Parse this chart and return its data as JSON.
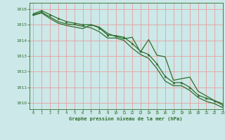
{
  "title": "Graphe pression niveau de la mer (hPa)",
  "background_color": "#cce8e8",
  "grid_color": "#e8a0a0",
  "line_color": "#2d6e2d",
  "marker_color": "#2d6e2d",
  "xlim": [
    -0.5,
    23
  ],
  "ylim": [
    1009.6,
    1016.4
  ],
  "xticks": [
    0,
    1,
    2,
    3,
    4,
    5,
    6,
    7,
    8,
    9,
    10,
    11,
    12,
    13,
    14,
    15,
    16,
    17,
    18,
    19,
    20,
    21,
    22,
    23
  ],
  "yticks": [
    1010,
    1011,
    1012,
    1013,
    1014,
    1015,
    1016
  ],
  "series1": [
    1015.7,
    1015.9,
    1015.65,
    1015.4,
    1015.2,
    1015.1,
    1015.0,
    1015.0,
    1014.8,
    1014.35,
    1014.3,
    1014.2,
    1013.8,
    1013.3,
    1013.1,
    1012.5,
    1011.7,
    1011.3,
    1011.3,
    1011.0,
    1010.5,
    1010.3,
    1010.15,
    1009.85
  ],
  "series2": [
    1015.65,
    1015.8,
    1015.5,
    1015.2,
    1015.05,
    1015.0,
    1014.9,
    1014.8,
    1014.55,
    1014.15,
    1014.15,
    1014.0,
    1013.5,
    1013.1,
    1012.85,
    1012.2,
    1011.4,
    1011.1,
    1011.1,
    1010.8,
    1010.35,
    1010.1,
    1009.95,
    1009.7
  ],
  "series3": [
    1015.6,
    1015.75,
    1015.4,
    1015.1,
    1014.95,
    1014.85,
    1014.75,
    1015.0,
    1014.85,
    1014.45,
    1014.25,
    1014.1,
    1014.2,
    1013.25,
    1014.05,
    1013.05,
    1012.95,
    1011.45,
    1011.55,
    1011.65,
    1010.75,
    1010.45,
    1010.15,
    1009.95
  ]
}
